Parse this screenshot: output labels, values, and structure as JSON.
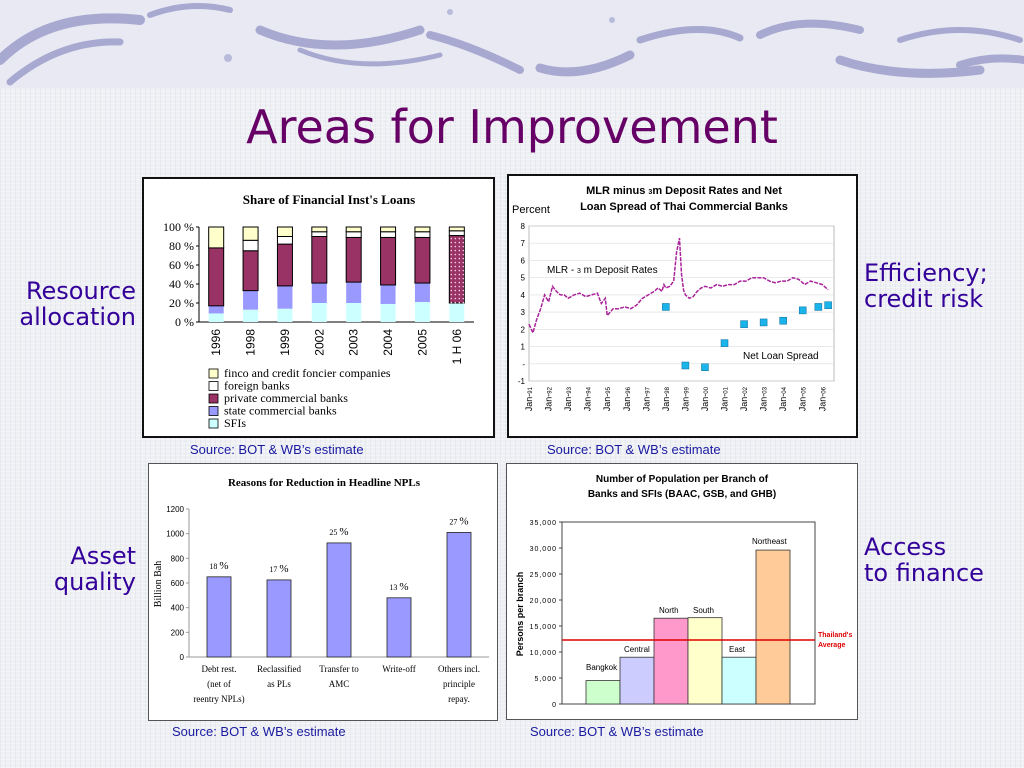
{
  "slide": {
    "title": "Areas for Improvement",
    "labels": {
      "resource_allocation": [
        "Resource",
        "allocation"
      ],
      "efficiency": [
        "Efficiency;",
        "credit risk"
      ],
      "asset_quality": [
        "Asset",
        "quality"
      ],
      "access": [
        "Access",
        "to finance"
      ]
    },
    "sources": [
      "Source: BOT & WB’s estimate",
      "Source: BOT & WB’s estimate",
      "Source: BOT & WB’s estimate",
      "Source: BOT & WB’s estimate"
    ],
    "colors": {
      "title": "#660066",
      "labels": "#330099",
      "source": "#1a1aa0"
    }
  },
  "chart_data": [
    {
      "type": "bar",
      "stacked": true,
      "title": "Share of Financial Inst's Loans",
      "categories": [
        "1996",
        "1998",
        "1999",
        "2002",
        "2003",
        "2004",
        "2005",
        "1 H 06"
      ],
      "series": [
        {
          "name": "SFIs",
          "color": "#ccffff",
          "values": [
            9,
            13,
            14,
            20,
            20,
            19,
            21,
            20
          ]
        },
        {
          "name": "state commercial banks",
          "color": "#9999ff",
          "values": [
            8,
            20,
            24,
            21,
            22,
            20,
            20,
            0
          ]
        },
        {
          "name": "private commercial banks",
          "color": "#993366",
          "values": [
            61,
            42,
            44,
            49,
            47,
            50,
            48,
            71
          ]
        },
        {
          "name": "foreign banks",
          "color": "#ffffff",
          "values": [
            0,
            11,
            8,
            5,
            6,
            6,
            6,
            5
          ]
        },
        {
          "name": "finco and credit foncier companies",
          "color": "#ffffcc",
          "values": [
            22,
            14,
            10,
            5,
            5,
            5,
            5,
            4
          ]
        }
      ],
      "legend_order": [
        "finco and credit foncier companies",
        "foreign banks",
        "private commercial banks",
        "state commercial banks",
        "SFIs"
      ],
      "yticks": [
        "0 %",
        "20 %",
        "40 %",
        "60 %",
        "80 %",
        "100 %"
      ],
      "ylim": [
        0,
        100
      ]
    },
    {
      "type": "line",
      "title": [
        "MLR minus 3m Deposit Rates and Net",
        "Loan Spread of Thai Commercial Banks"
      ],
      "title_sub": "3",
      "ylabel": "Percent",
      "ylim": [
        -1,
        8
      ],
      "yticks": [
        "-1",
        "-",
        "1",
        "2",
        "3",
        "4",
        "5",
        "6",
        "7",
        "8"
      ],
      "xticks": [
        "Jan-91",
        "Jan-92",
        "Jan-93",
        "Jan-94",
        "Jan-95",
        "Jan-96",
        "Jan-97",
        "Jan-98",
        "Jan-99",
        "Jan-00",
        "Jan-01",
        "Jan-02",
        "Jan-03",
        "Jan-04",
        "Jan-05",
        "Jan-06"
      ],
      "annotations": {
        "mlr": "MLR - ",
        "mlr_sub": "3",
        "mlr_tail": " m Deposit Rates",
        "nls": "Net Loan Spread"
      },
      "series": [
        {
          "name": "MLR - 3 m Deposit Rates",
          "color": "#aa2299",
          "x": [
            1991.0,
            1991.2,
            1991.4,
            1991.6,
            1991.8,
            1992.0,
            1992.2,
            1992.4,
            1992.6,
            1992.8,
            1993.0,
            1993.3,
            1993.6,
            1993.9,
            1994.2,
            1994.5,
            1994.7,
            1994.9,
            1995.0,
            1995.3,
            1995.6,
            1995.9,
            1996.2,
            1996.5,
            1996.8,
            1997.1,
            1997.4,
            1997.6,
            1997.8,
            1997.9,
            1998.0,
            1998.2,
            1998.4,
            1998.55,
            1998.7,
            1998.8,
            1998.9,
            1999.0,
            1999.2,
            1999.4,
            1999.6,
            1999.8,
            2000.0,
            2000.3,
            2000.6,
            2000.9,
            2001.2,
            2001.5,
            2001.8,
            2002.1,
            2002.4,
            2002.7,
            2003.0,
            2003.3,
            2003.6,
            2003.9,
            2004.2,
            2004.5,
            2004.8,
            2005.1,
            2005.4,
            2005.7,
            2006.0,
            2006.3
          ],
          "y": [
            2.3,
            1.8,
            2.6,
            3.2,
            4.0,
            3.6,
            4.5,
            4.2,
            4.0,
            4.0,
            3.8,
            4.0,
            4.1,
            3.9,
            4.0,
            4.1,
            3.5,
            3.8,
            2.8,
            3.2,
            3.2,
            3.3,
            3.2,
            3.4,
            3.8,
            4.0,
            4.2,
            4.4,
            4.2,
            4.6,
            4.4,
            4.5,
            4.8,
            6.5,
            7.3,
            5.2,
            4.3,
            4.0,
            3.8,
            3.9,
            4.2,
            4.4,
            4.5,
            4.4,
            4.6,
            4.5,
            4.6,
            4.6,
            4.8,
            4.8,
            5.0,
            5.0,
            5.0,
            4.8,
            4.7,
            4.8,
            4.8,
            5.0,
            4.9,
            4.6,
            4.8,
            4.7,
            4.6,
            4.3
          ]
        },
        {
          "name": "Net Loan Spread",
          "color": "#1ab4ea",
          "x": [
            1998.0,
            1999.0,
            2000.0,
            2001.0,
            2002.0,
            2003.0,
            2004.0,
            2005.0,
            2005.8,
            2006.3
          ],
          "y": [
            3.3,
            -0.1,
            -0.2,
            1.2,
            2.3,
            2.4,
            2.5,
            3.1,
            3.3,
            3.4
          ]
        }
      ]
    },
    {
      "type": "bar",
      "title": "Reasons for Reduction in Headline NPLs",
      "ylabel": "Billion Bah",
      "ylim": [
        0,
        1200
      ],
      "yticks": [
        "0",
        "200",
        "400",
        "600",
        "800",
        "1000",
        "1200"
      ],
      "categories": [
        [
          "Debt rest.",
          "(net of",
          "reentry NPLs)"
        ],
        [
          "Reclassified",
          "as PLs"
        ],
        [
          "Transfer to",
          "AMC"
        ],
        [
          "Write-off"
        ],
        [
          "Others incl.",
          "principle",
          "repay."
        ]
      ],
      "values": [
        650,
        625,
        925,
        480,
        1010
      ],
      "data_labels": [
        [
          "18 ",
          "%"
        ],
        [
          "17 ",
          "%"
        ],
        [
          "25 ",
          "%"
        ],
        [
          "13 ",
          "%"
        ],
        [
          "27 ",
          "%"
        ]
      ],
      "color": "#9999ff"
    },
    {
      "type": "bar",
      "title": [
        "Number of Population per Branch of",
        "Banks and SFIs (BAAC, GSB, and GHB)"
      ],
      "ylabel": "Persons per branch",
      "ylim": [
        0,
        35000
      ],
      "yticks": [
        "0",
        "5,000",
        "10,000",
        "15,000",
        "20,000",
        "25,000",
        "30,000",
        "35,000"
      ],
      "categories": [
        "Bangkok",
        "Central",
        "North",
        "South",
        "East",
        "Northeast"
      ],
      "values": [
        4500,
        9000,
        16500,
        16600,
        9000,
        29600
      ],
      "colors": [
        "#ccffcc",
        "#ccccff",
        "#ff99cc",
        "#ffffcc",
        "#ccffff",
        "#ffcc99"
      ],
      "reference": {
        "label": [
          "Thailand's",
          "Average"
        ],
        "value": 12300,
        "color": "#dd0000"
      }
    }
  ]
}
